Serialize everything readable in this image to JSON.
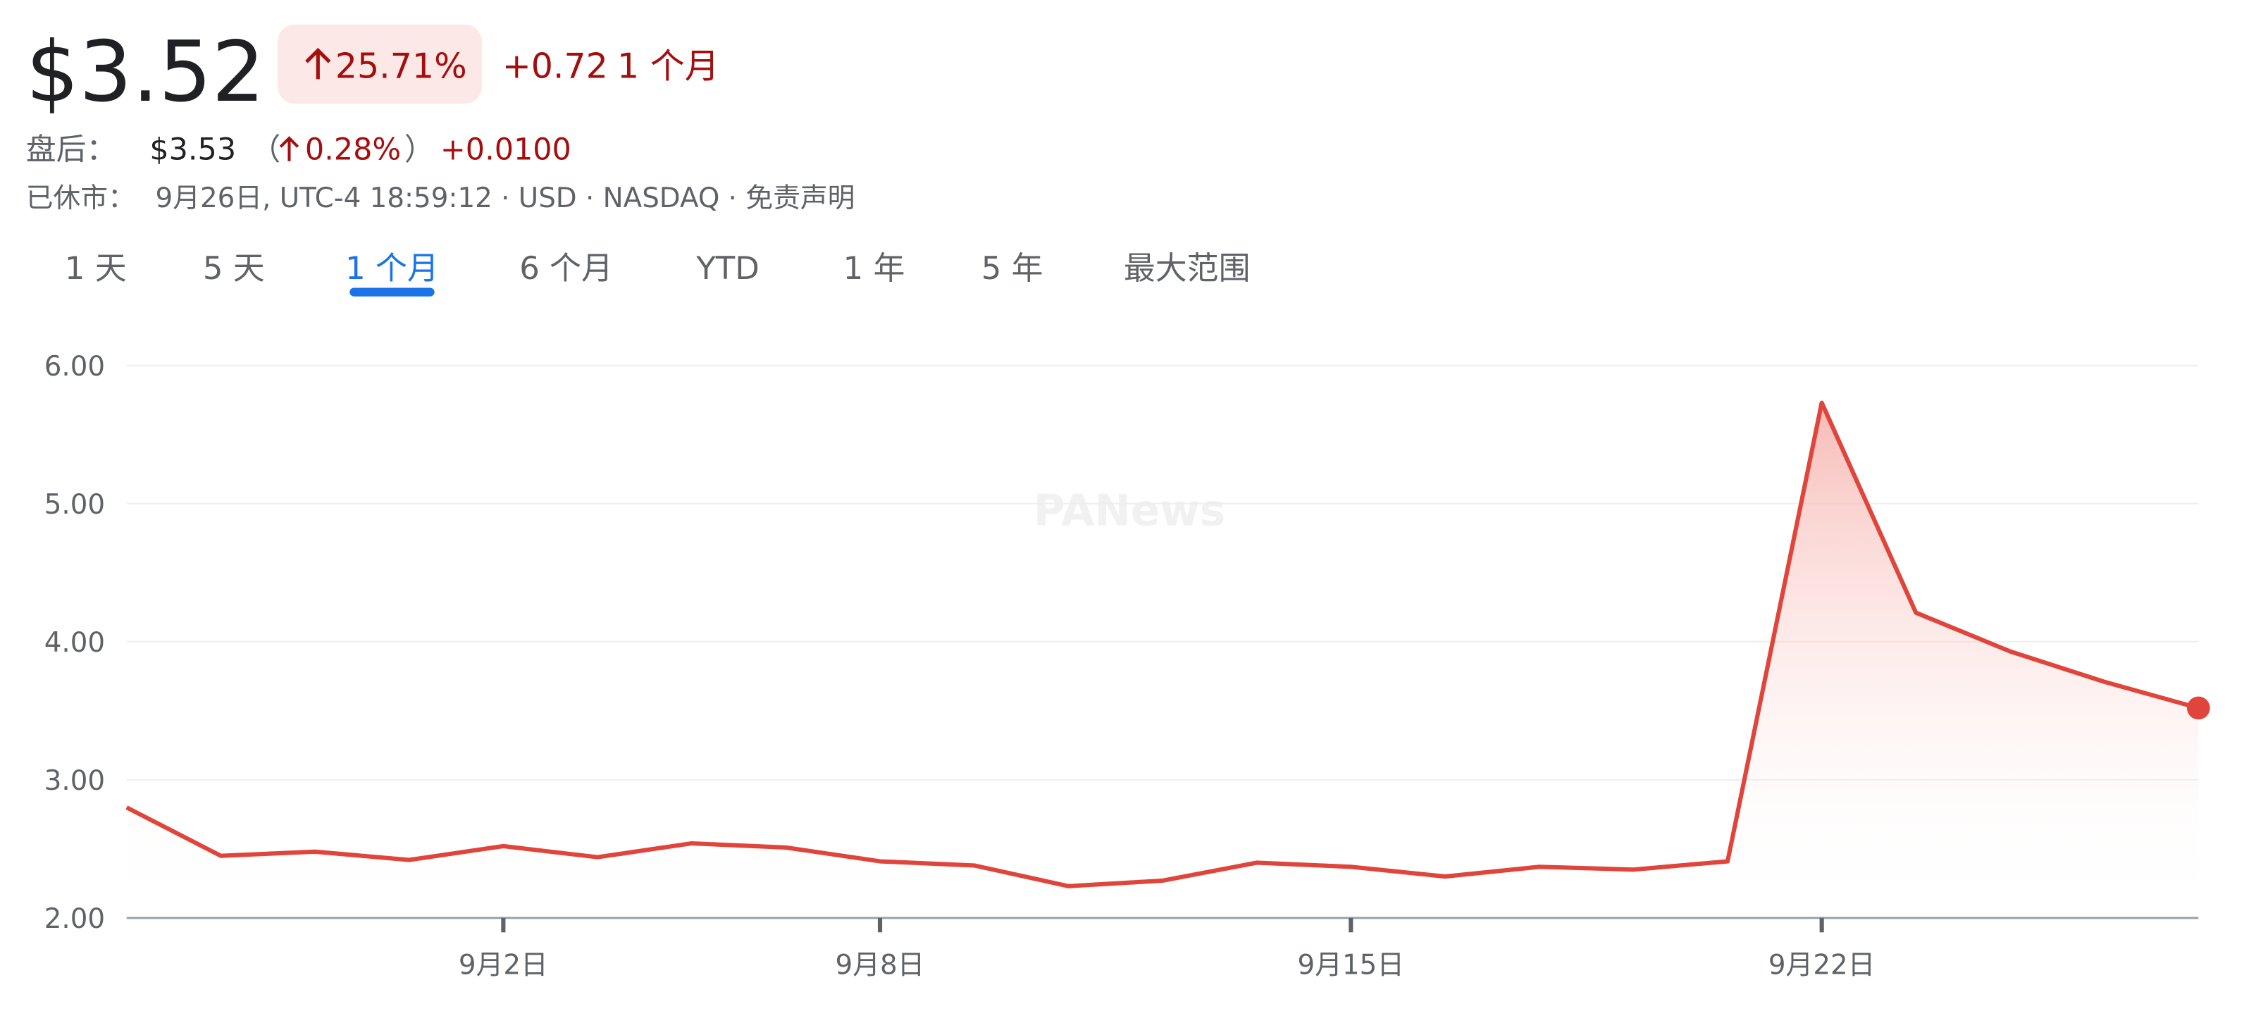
{
  "quote": {
    "price": "$3.52",
    "change_percent": "25.71%",
    "change": "+0.72",
    "period": "1 个月"
  },
  "after_hours": {
    "label": "盘后：",
    "price": "$3.53",
    "open_paren": "（",
    "change_percent": "0.28%",
    "close_paren": "）",
    "change": "+0.0100"
  },
  "status": {
    "label": "已休市：",
    "details": "9月26日, UTC-4 18:59:12 · USD · NASDAQ · 免责声明"
  },
  "tabs": [
    "1 天",
    "5 天",
    "1 个月",
    "6 个月",
    "YTD",
    "1 年",
    "5 年",
    "最大范围"
  ],
  "active_tab": 2,
  "watermark": "PANews",
  "chart_data": {
    "type": "line",
    "categories": [
      null,
      null,
      null,
      null,
      "9月2日",
      null,
      null,
      null,
      "9月8日",
      null,
      null,
      null,
      null,
      "9月15日",
      null,
      null,
      null,
      null,
      "9月22日",
      null,
      null,
      null,
      null
    ],
    "values": [
      2.8,
      2.45,
      2.48,
      2.42,
      2.52,
      2.44,
      2.54,
      2.51,
      2.41,
      2.38,
      2.23,
      2.27,
      2.4,
      2.37,
      2.3,
      2.37,
      2.35,
      2.41,
      5.73,
      4.21,
      3.93,
      3.71,
      3.52
    ],
    "color": "#e0443a",
    "ylim": [
      2,
      6
    ],
    "yticks": [
      {
        "value": 2,
        "label": "2.00"
      },
      {
        "value": 3,
        "label": "3.00"
      },
      {
        "value": 4,
        "label": "4.00"
      },
      {
        "value": 5,
        "label": "5.00"
      },
      {
        "value": 6,
        "label": "6.00"
      }
    ],
    "grid": true
  }
}
